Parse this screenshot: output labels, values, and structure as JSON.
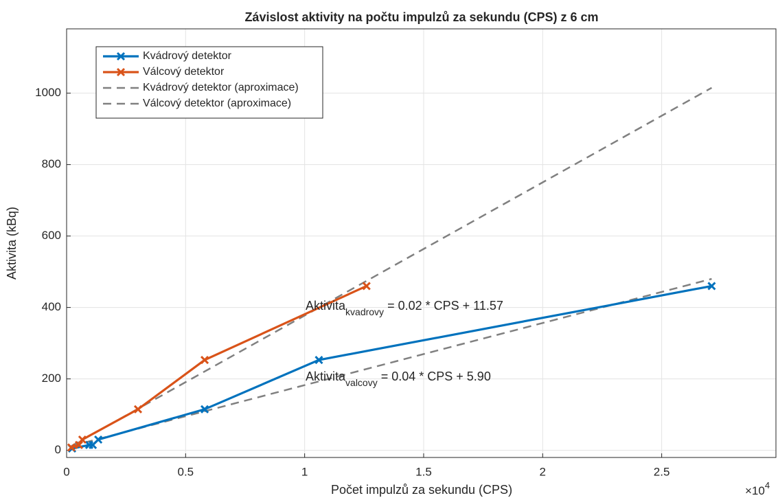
{
  "chart_data": {
    "type": "line",
    "title": "Závislost aktivity na počtu impulzů za sekundu (CPS) z 6 cm",
    "x_label": "Počet impulzů za sekundu (CPS)",
    "y_label": "Aktivita (kBq)",
    "x_exponent": {
      "base": "×10",
      "power": "4"
    },
    "xlim": [
      0,
      29800
    ],
    "ylim": [
      -20,
      1180
    ],
    "xticks": [
      0,
      {
        "value": 5000,
        "label": "0.5"
      },
      {
        "value": 10000,
        "label": "1"
      },
      {
        "value": 15000,
        "label": "1.5"
      },
      {
        "value": 20000,
        "label": "2"
      },
      {
        "value": 25000,
        "label": "2.5"
      }
    ],
    "yticks": [
      0,
      200,
      400,
      600,
      800,
      1000
    ],
    "grid": true,
    "legend": "northwest",
    "series": [
      {
        "name": "Kvádrový detektor",
        "color": "#0072bd",
        "marker": "x",
        "dashed": false,
        "x": [
          230,
          950,
          1100,
          1330,
          5800,
          10600,
          27100
        ],
        "values": [
          5,
          15,
          15,
          30,
          115,
          253,
          460
        ]
      },
      {
        "name": "Válcový detektor",
        "color": "#d95319",
        "marker": "x",
        "dashed": false,
        "x": [
          200,
          520,
          660,
          3000,
          5800,
          12600
        ],
        "values": [
          8,
          15,
          30,
          115,
          253,
          460
        ]
      },
      {
        "name": "Kvádrový detektor (aproximace)",
        "color": "#808080",
        "marker": null,
        "dashed": true,
        "x": [
          200,
          27100
        ],
        "values": [
          12,
          480
        ]
      },
      {
        "name": "Válcový detektor (aproximace)",
        "color": "#808080",
        "marker": null,
        "dashed": true,
        "x": [
          200,
          27100
        ],
        "values": [
          12,
          1015
        ]
      }
    ],
    "annotations": [
      {
        "text": "Aktivita",
        "sub": "kvadrovy",
        "rest": " = 0.02 * CPS + 11.57"
      },
      {
        "text": "Aktivita",
        "sub": "valcovy",
        "rest": " = 0.04 * CPS + 5.90"
      }
    ]
  }
}
